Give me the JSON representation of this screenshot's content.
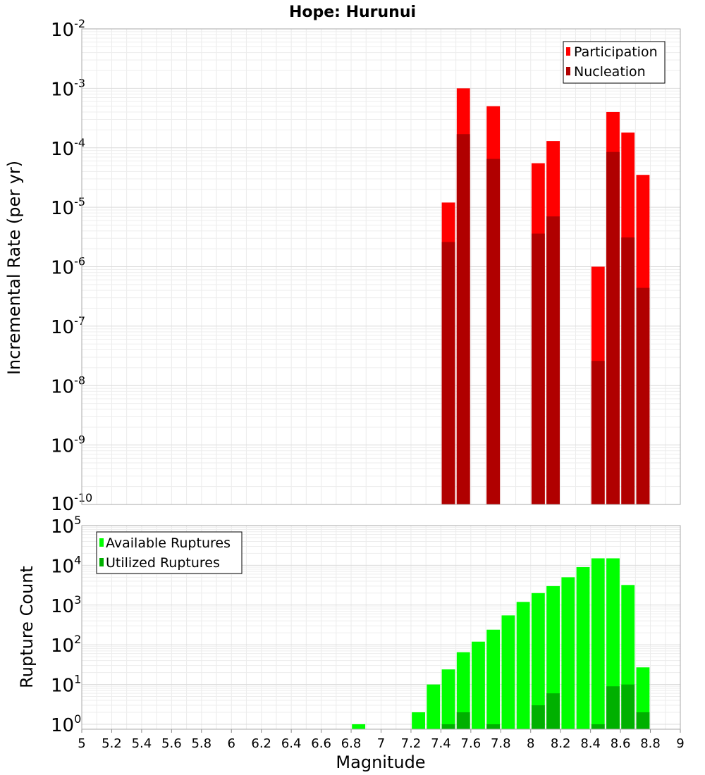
{
  "chart_data": [
    {
      "type": "bar",
      "title": "Hope: Hurunui",
      "ylabel": "Incremental Rate (per yr)",
      "xlabel": "",
      "yscale": "log",
      "xlim": [
        5,
        9
      ],
      "ylim": [
        1e-10,
        0.01
      ],
      "y_ticks": [
        {
          "base": "10",
          "exp": "-2",
          "value": 0.01
        },
        {
          "base": "10",
          "exp": "-3",
          "value": 0.001
        },
        {
          "base": "10",
          "exp": "-4",
          "value": 0.0001
        },
        {
          "base": "10",
          "exp": "-5",
          "value": 1e-05
        },
        {
          "base": "10",
          "exp": "-6",
          "value": 1e-06
        },
        {
          "base": "10",
          "exp": "-7",
          "value": 1e-07
        },
        {
          "base": "10",
          "exp": "-8",
          "value": 1e-08
        },
        {
          "base": "10",
          "exp": "-9",
          "value": 1e-09
        },
        {
          "base": "10",
          "exp": "-10",
          "value": 1e-10
        }
      ],
      "grid": true,
      "legend_position": "top-right",
      "series": [
        {
          "name": "Participation",
          "color": "#ff0000",
          "x": [
            7.45,
            7.55,
            7.75,
            8.05,
            8.15,
            8.45,
            8.55,
            8.65,
            8.75
          ],
          "values": [
            1.2e-05,
            0.001,
            0.0005,
            5.5e-05,
            0.00013,
            1e-06,
            0.0004,
            0.00018,
            3.5e-05
          ]
        },
        {
          "name": "Nucleation",
          "color": "#b00000",
          "x": [
            7.45,
            7.55,
            7.75,
            8.05,
            8.15,
            8.45,
            8.55,
            8.65,
            8.75
          ],
          "values": [
            2.6e-06,
            0.00017,
            6.5e-05,
            3.6e-06,
            7e-06,
            2.6e-08,
            8.5e-05,
            3.1e-06,
            4.4e-07
          ]
        }
      ]
    },
    {
      "type": "bar",
      "title": "",
      "ylabel": "Rupture Count",
      "xlabel": "Magnitude",
      "yscale": "log",
      "xlim": [
        5,
        9
      ],
      "ylim": [
        0.75,
        100000
      ],
      "x_ticks": [
        "5",
        "5.2",
        "5.4",
        "5.6",
        "5.8",
        "6",
        "6.2",
        "6.4",
        "6.6",
        "6.8",
        "7",
        "7.2",
        "7.4",
        "7.6",
        "7.8",
        "8",
        "8.2",
        "8.4",
        "8.6",
        "8.8",
        "9"
      ],
      "y_ticks": [
        {
          "base": "10",
          "exp": "5",
          "value": 100000
        },
        {
          "base": "10",
          "exp": "4",
          "value": 10000
        },
        {
          "base": "10",
          "exp": "3",
          "value": 1000
        },
        {
          "base": "10",
          "exp": "2",
          "value": 100
        },
        {
          "base": "10",
          "exp": "1",
          "value": 10
        },
        {
          "base": "10",
          "exp": "0",
          "value": 1
        }
      ],
      "grid": true,
      "legend_position": "top-left",
      "series": [
        {
          "name": "Available Ruptures",
          "color": "#00ff00",
          "x": [
            6.85,
            7.25,
            7.35,
            7.45,
            7.55,
            7.65,
            7.75,
            7.85,
            7.95,
            8.05,
            8.15,
            8.25,
            8.35,
            8.45,
            8.55,
            8.65,
            8.75
          ],
          "values": [
            1,
            2,
            10,
            24,
            65,
            120,
            240,
            550,
            1200,
            2000,
            3000,
            5000,
            9000,
            15000,
            15000,
            3200,
            27
          ]
        },
        {
          "name": "Utilized Ruptures",
          "color": "#00b000",
          "x": [
            7.45,
            7.55,
            7.75,
            8.05,
            8.15,
            8.45,
            8.55,
            8.65,
            8.75
          ],
          "values": [
            1,
            2,
            1,
            3,
            6,
            1,
            9,
            10,
            2
          ]
        }
      ]
    }
  ]
}
